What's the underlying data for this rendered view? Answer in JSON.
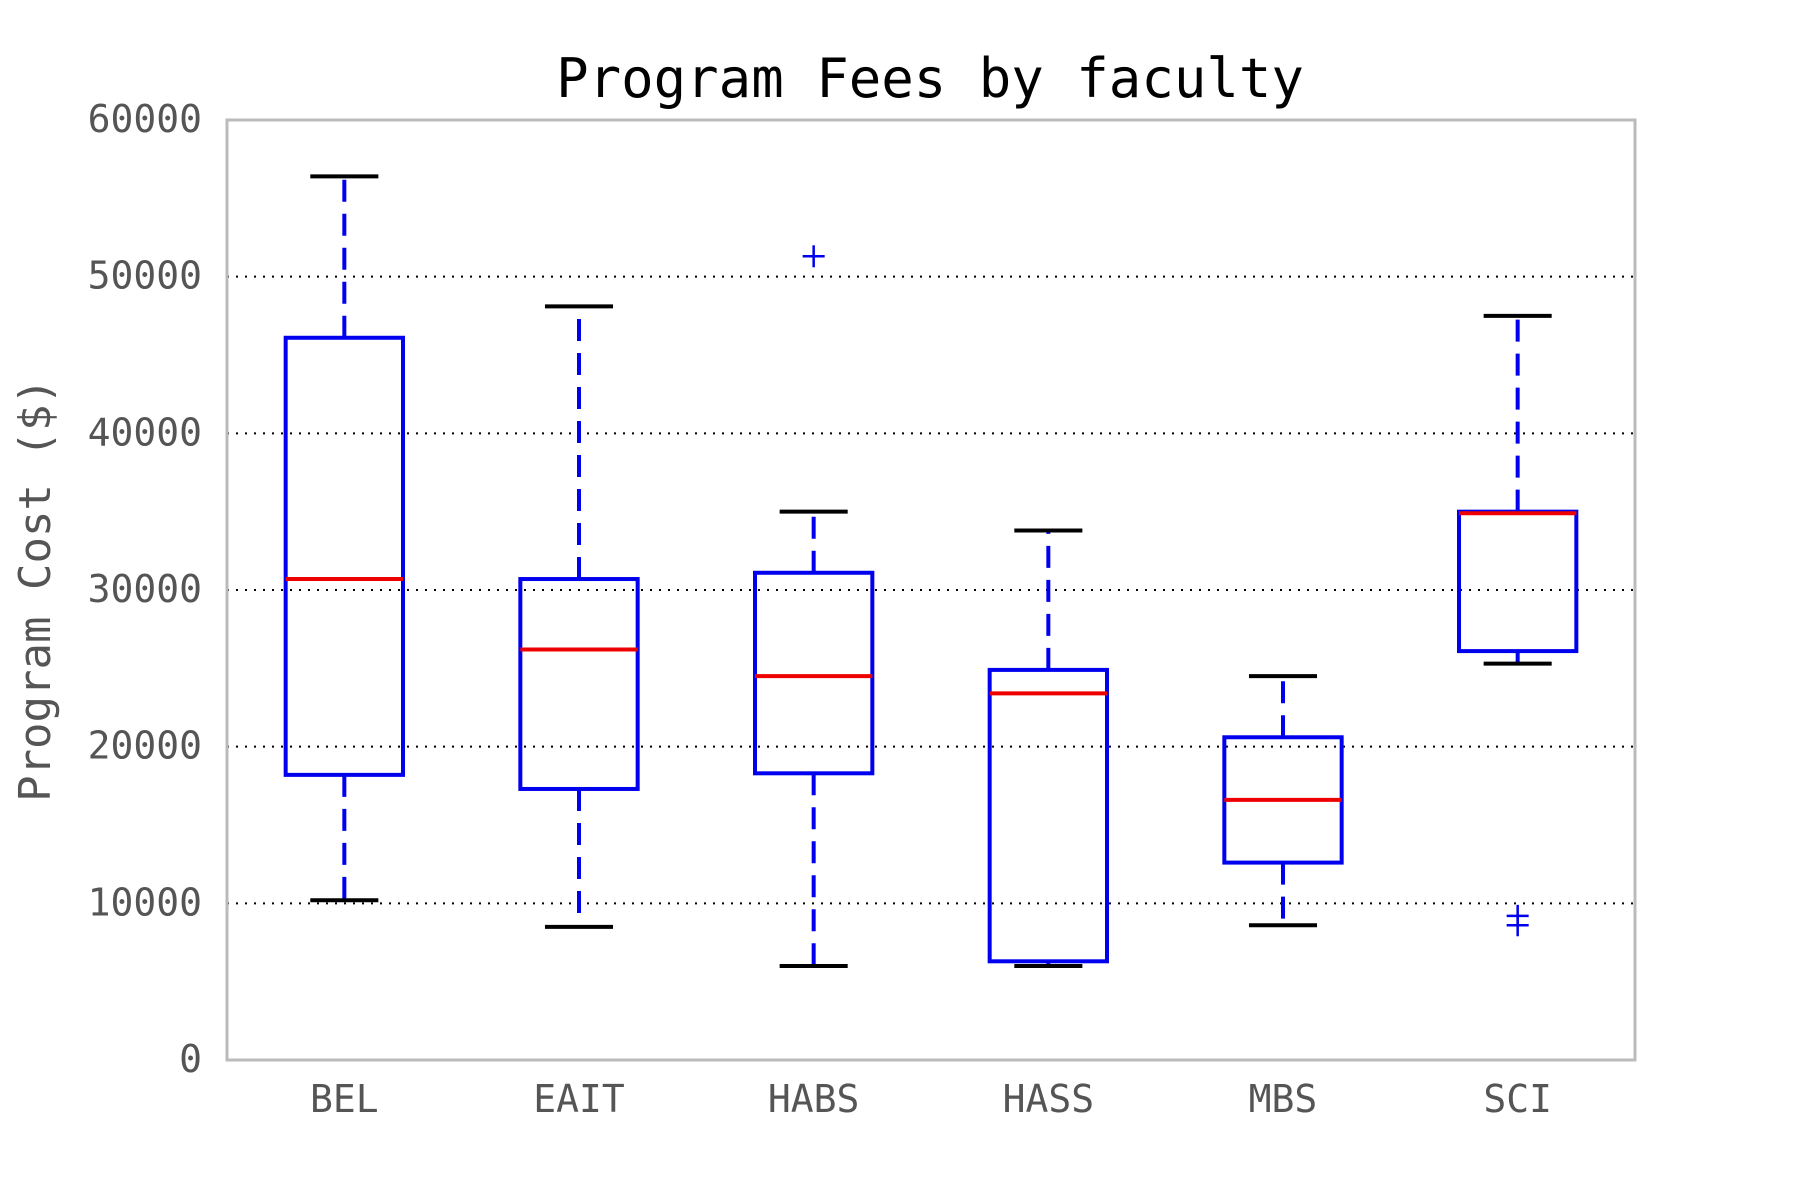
{
  "chart_data": {
    "type": "box",
    "title": "Program Fees by faculty",
    "xlabel": "",
    "ylabel": "Program Cost ($)",
    "ylim": [
      0,
      60000
    ],
    "yticks": [
      "0",
      "10000",
      "20000",
      "30000",
      "40000",
      "50000",
      "60000"
    ],
    "grid": "horizontal-dotted",
    "categories": [
      "BEL",
      "EAIT",
      "HABS",
      "HASS",
      "MBS",
      "SCI"
    ],
    "boxes": [
      {
        "category": "BEL",
        "whisker_low": 10200,
        "q1": 18200,
        "median": 30700,
        "q3": 46100,
        "whisker_high": 56400,
        "outliers": []
      },
      {
        "category": "EAIT",
        "whisker_low": 8500,
        "q1": 17300,
        "median": 26200,
        "q3": 30700,
        "whisker_high": 48100,
        "outliers": []
      },
      {
        "category": "HABS",
        "whisker_low": 6000,
        "q1": 18300,
        "median": 24500,
        "q3": 31100,
        "whisker_high": 35000,
        "outliers": [
          51300
        ]
      },
      {
        "category": "HASS",
        "whisker_low": 6000,
        "q1": 6300,
        "median": 23400,
        "q3": 24900,
        "whisker_high": 33800,
        "outliers": []
      },
      {
        "category": "MBS",
        "whisker_low": 8600,
        "q1": 12600,
        "median": 16600,
        "q3": 20600,
        "whisker_high": 24500,
        "outliers": []
      },
      {
        "category": "SCI",
        "whisker_low": 25300,
        "q1": 26100,
        "median": 34900,
        "q3": 35000,
        "whisker_high": 47500,
        "outliers": [
          8600,
          9200
        ]
      }
    ],
    "colors": {
      "box": "#0000ee",
      "median": "#ee0000",
      "cap": "#000000",
      "grid": "#000000",
      "frame": "#bbbbbb",
      "tick_text": "#555555",
      "title_text": "#000000"
    }
  }
}
